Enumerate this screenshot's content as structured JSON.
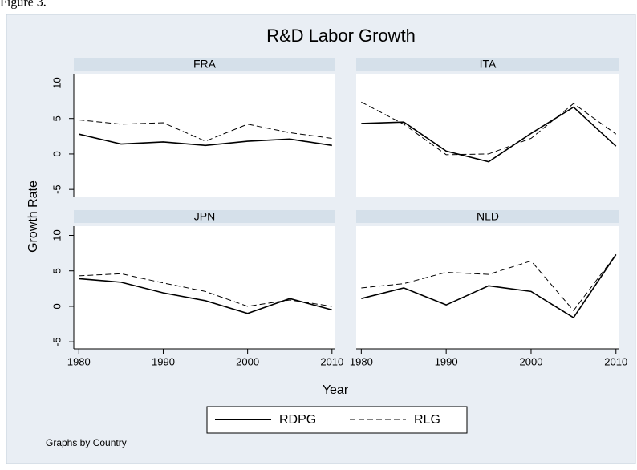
{
  "figure_label": "Figure 3.",
  "title": "R&D Labor Growth",
  "x_label": "Year",
  "y_label": "Growth Rate",
  "note": "Graphs by Country",
  "chart_data": [
    {
      "type": "line",
      "title": "FRA",
      "x": [
        1980,
        1985,
        1990,
        1995,
        2000,
        2005,
        2010
      ],
      "xlim": [
        1979.4,
        2010.4
      ],
      "ylim": [
        -6,
        11.3
      ],
      "yticks": [
        -5,
        0,
        5,
        10
      ],
      "series": [
        {
          "name": "RDPG",
          "color": "#000000",
          "style": "solid",
          "values": [
            2.8,
            1.4,
            1.7,
            1.2,
            1.8,
            2.1,
            1.2
          ]
        },
        {
          "name": "RLG",
          "color": "#000000",
          "style": "dashed",
          "values": [
            4.8,
            4.2,
            4.4,
            1.8,
            4.2,
            3.0,
            2.2
          ]
        }
      ]
    },
    {
      "type": "line",
      "title": "ITA",
      "x": [
        1980,
        1985,
        1990,
        1995,
        2000,
        2005,
        2010
      ],
      "xlim": [
        1979.4,
        2010.4
      ],
      "ylim": [
        -6,
        11.3
      ],
      "series": [
        {
          "name": "RDPG",
          "color": "#000000",
          "style": "solid",
          "values": [
            4.3,
            4.5,
            0.4,
            -1.1,
            2.9,
            6.6,
            1.1
          ]
        },
        {
          "name": "RLG",
          "color": "#000000",
          "style": "dashed",
          "values": [
            7.3,
            4.2,
            -0.1,
            0,
            2.2,
            7.1,
            2.8
          ]
        }
      ]
    },
    {
      "type": "line",
      "title": "JPN",
      "x": [
        1980,
        1985,
        1990,
        1995,
        2000,
        2005,
        2010
      ],
      "xlim": [
        1979.4,
        2010.4
      ],
      "ylim": [
        -6,
        11.3
      ],
      "yticks": [
        -5,
        0,
        5,
        10
      ],
      "xticks": [
        1980,
        1990,
        2000,
        2010
      ],
      "series": [
        {
          "name": "RDPG",
          "color": "#000000",
          "style": "solid",
          "values": [
            3.9,
            3.4,
            1.9,
            0.8,
            -1.0,
            1.1,
            -0.5
          ]
        },
        {
          "name": "RLG",
          "color": "#000000",
          "style": "dashed",
          "values": [
            4.3,
            4.6,
            3.3,
            2.1,
            0,
            0.9,
            0
          ]
        }
      ]
    },
    {
      "type": "line",
      "title": "NLD",
      "x": [
        1980,
        1985,
        1990,
        1995,
        2000,
        2005,
        2010
      ],
      "xlim": [
        1979.4,
        2010.4
      ],
      "ylim": [
        -6,
        11.3
      ],
      "xticks": [
        1980,
        1990,
        2000,
        2010
      ],
      "series": [
        {
          "name": "RDPG",
          "color": "#000000",
          "style": "solid",
          "values": [
            1.1,
            2.6,
            0.2,
            2.9,
            2.1,
            -1.6,
            7.3
          ]
        },
        {
          "name": "RLG",
          "color": "#000000",
          "style": "dashed",
          "values": [
            2.6,
            3.2,
            4.8,
            4.5,
            6.4,
            -0.6,
            7.3
          ]
        }
      ]
    }
  ]
}
